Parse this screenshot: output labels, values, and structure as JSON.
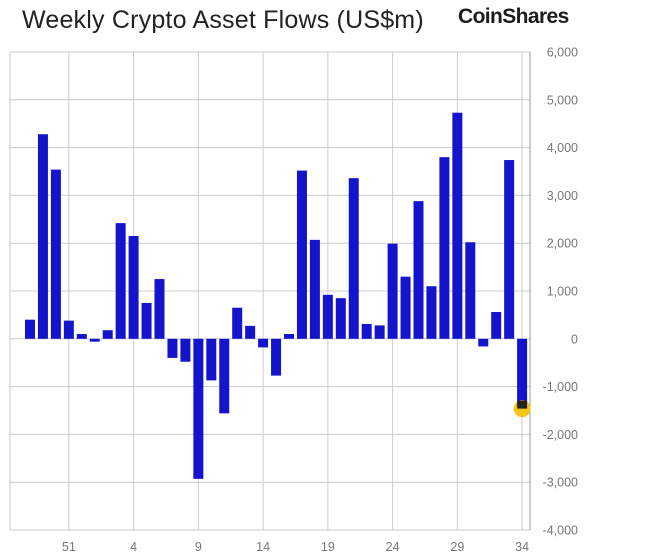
{
  "title": "Weekly Crypto Asset Flows (US$m)",
  "brand": "CoinShares",
  "colors": {
    "bar": "#1414cc",
    "grid": "#cccccc",
    "marker": "#f5c518",
    "marker_bar": "#222222"
  },
  "chart_data": {
    "type": "bar",
    "title": "Weekly Crypto Asset Flows (US$m)",
    "xlabel": "",
    "ylabel": "",
    "ylim": [
      -4000,
      6000
    ],
    "yticks": [
      "6,000",
      "5,000",
      "4,000",
      "3,000",
      "2,000",
      "1,000",
      "0",
      "-1,000",
      "-2,000",
      "-3,000",
      "-4,000"
    ],
    "ytick_values": [
      6000,
      5000,
      4000,
      3000,
      2000,
      1000,
      0,
      -1000,
      -2000,
      -3000,
      -4000
    ],
    "xticks": [
      "51",
      "4",
      "9",
      "14",
      "19",
      "24",
      "29",
      "34"
    ],
    "xtick_values": [
      51,
      56,
      61,
      66,
      71,
      76,
      81,
      86
    ],
    "week_index": [
      48,
      49,
      50,
      51,
      52,
      53,
      54,
      55,
      56,
      57,
      58,
      59,
      60,
      61,
      62,
      63,
      64,
      65,
      66,
      67,
      68,
      69,
      70,
      71,
      72,
      73,
      74,
      75,
      76,
      77,
      78,
      79,
      80,
      81,
      82,
      83,
      84,
      85,
      86
    ],
    "values": [
      400,
      4280,
      3540,
      380,
      100,
      -60,
      180,
      2420,
      2150,
      750,
      1250,
      -400,
      -480,
      -2930,
      -870,
      -1560,
      650,
      270,
      -180,
      -770,
      100,
      3520,
      2070,
      920,
      850,
      3360,
      310,
      280,
      1990,
      1300,
      2880,
      1100,
      3800,
      4730,
      2020,
      -160,
      560,
      3740,
      -1460
    ],
    "highlight_last": true
  }
}
